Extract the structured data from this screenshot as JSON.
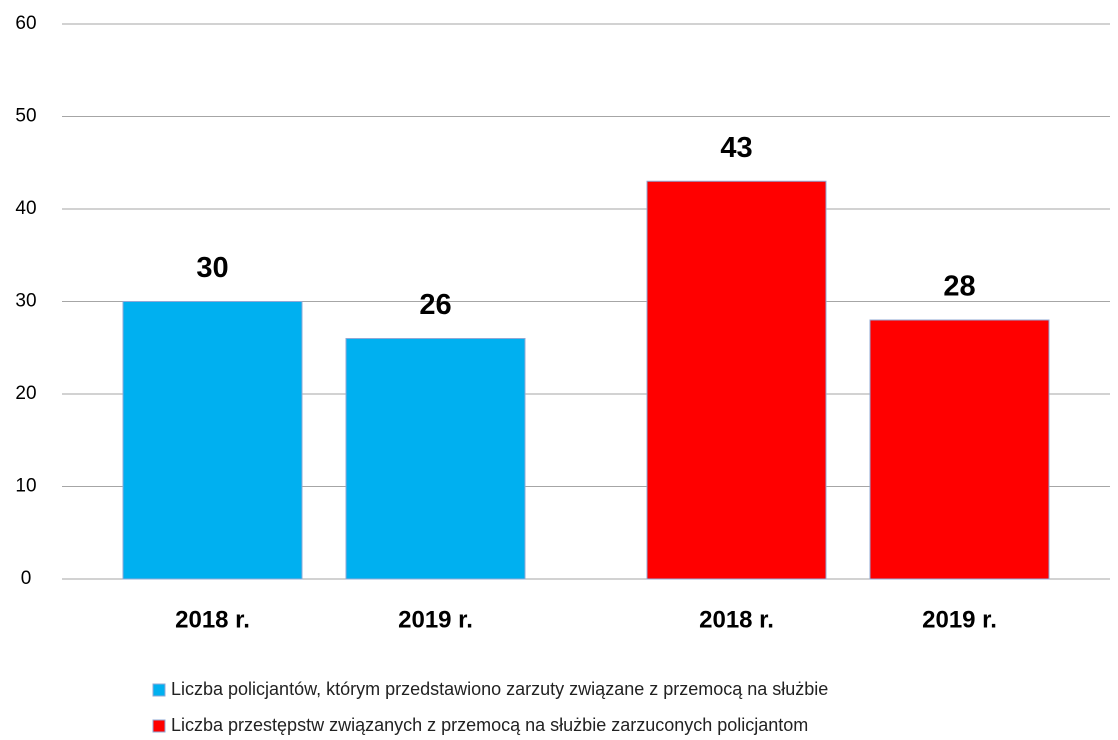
{
  "chart_data": {
    "type": "bar",
    "categories": [
      "2018 r.",
      "2019 r."
    ],
    "series": [
      {
        "name": "Liczba policjantów, którym przedstawiono zarzuty związane z przemocą na służbie",
        "color": "#00b0f0",
        "values": [
          30,
          26
        ]
      },
      {
        "name": "Liczba przestępstw związanych z przemocą na służbie zarzuconych policjantom",
        "color": "#ff0000",
        "values": [
          43,
          28
        ]
      }
    ],
    "ylim": [
      0,
      60
    ],
    "yticks": [
      0,
      10,
      20,
      30,
      40,
      50,
      60
    ],
    "grid": true
  }
}
